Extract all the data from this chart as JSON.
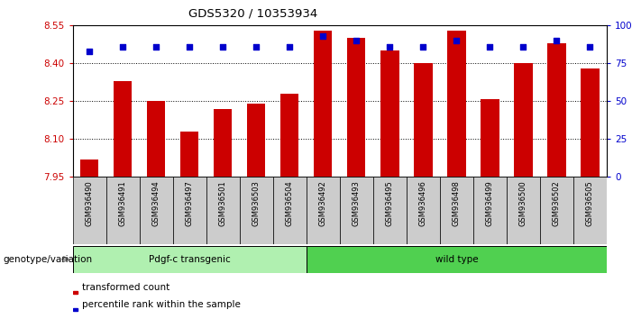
{
  "title": "GDS5320 / 10353934",
  "categories": [
    "GSM936490",
    "GSM936491",
    "GSM936494",
    "GSM936497",
    "GSM936501",
    "GSM936503",
    "GSM936504",
    "GSM936492",
    "GSM936493",
    "GSM936495",
    "GSM936496",
    "GSM936498",
    "GSM936499",
    "GSM936500",
    "GSM936502",
    "GSM936505"
  ],
  "bar_values": [
    8.02,
    8.33,
    8.25,
    8.13,
    8.22,
    8.24,
    8.28,
    8.53,
    8.5,
    8.45,
    8.4,
    8.53,
    8.26,
    8.4,
    8.48,
    8.38
  ],
  "percentile_values": [
    83,
    86,
    86,
    86,
    86,
    86,
    86,
    93,
    90,
    86,
    86,
    90,
    86,
    86,
    90,
    86
  ],
  "bar_color": "#CC0000",
  "dot_color": "#0000CC",
  "ylim_left": [
    7.95,
    8.55
  ],
  "ylim_right": [
    0,
    100
  ],
  "yticks_left": [
    7.95,
    8.1,
    8.25,
    8.4,
    8.55
  ],
  "yticks_right": [
    0,
    25,
    50,
    75,
    100
  ],
  "grid_values": [
    8.1,
    8.25,
    8.4
  ],
  "group1_label": "Pdgf-c transgenic",
  "group2_label": "wild type",
  "group1_count": 7,
  "group2_count": 9,
  "group1_color": "#B0F0B0",
  "group2_color": "#50D050",
  "xlabel_label": "genotype/variation",
  "legend_items": [
    "transformed count",
    "percentile rank within the sample"
  ],
  "background_color": "#FFFFFF",
  "bar_width": 0.55,
  "tick_bg_color": "#CCCCCC",
  "tick_border_color": "#000000"
}
